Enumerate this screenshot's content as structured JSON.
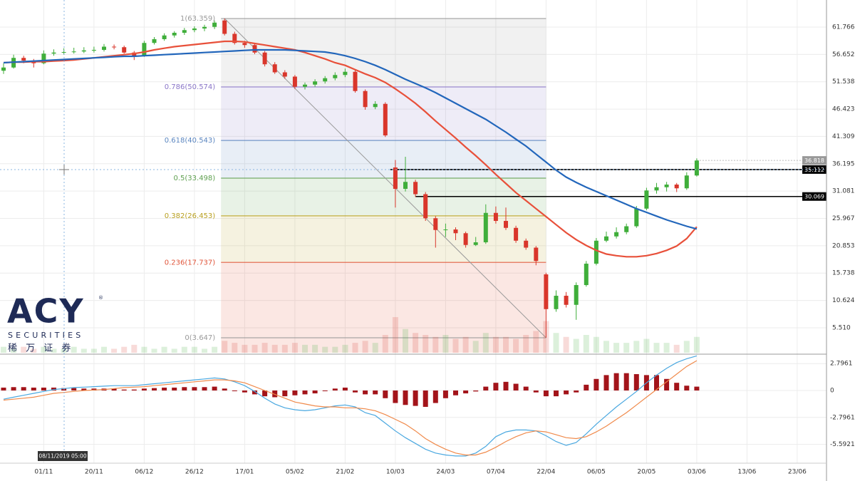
{
  "chart_data": {
    "type": "candlestick",
    "categories": [
      null,
      null,
      null,
      null,
      "01/11",
      null,
      null,
      null,
      null,
      "20/11",
      null,
      null,
      null,
      null,
      "06/12",
      null,
      null,
      null,
      null,
      "26/12",
      null,
      null,
      null,
      null,
      "17/01",
      null,
      null,
      null,
      null,
      "05/02",
      null,
      null,
      null,
      null,
      "21/02",
      null,
      null,
      null,
      null,
      "10/03",
      null,
      null,
      null,
      null,
      "24/03",
      null,
      null,
      null,
      null,
      "07/04",
      null,
      null,
      null,
      null,
      "22/04",
      null,
      null,
      null,
      null,
      "06/05",
      null,
      null,
      null,
      null,
      "20/05",
      null,
      null,
      null,
      null,
      "03/06",
      null,
      null,
      null,
      null,
      "13/06",
      null,
      null,
      null,
      null,
      "23/06"
    ],
    "ohlc": [
      [
        53.6,
        55.0,
        53.0,
        54.2
      ],
      [
        54.2,
        56.6,
        54.0,
        56.0
      ],
      [
        56.0,
        56.4,
        55.0,
        55.5
      ],
      [
        55.5,
        55.8,
        54.2,
        55.0
      ],
      [
        55.0,
        57.4,
        54.8,
        56.8
      ],
      [
        56.8,
        57.6,
        56.4,
        57.0
      ],
      [
        57.0,
        57.8,
        56.6,
        57.1
      ],
      [
        57.1,
        57.9,
        56.8,
        57.2
      ],
      [
        57.2,
        58.0,
        56.9,
        57.4
      ],
      [
        57.4,
        58.1,
        57.0,
        57.5
      ],
      [
        57.5,
        58.6,
        57.2,
        58.1
      ],
      [
        58.1,
        58.5,
        57.6,
        58.0
      ],
      [
        58.0,
        58.3,
        56.8,
        57.0
      ],
      [
        57.0,
        57.3,
        55.6,
        56.4
      ],
      [
        56.4,
        59.2,
        56.2,
        58.8
      ],
      [
        58.8,
        59.9,
        58.5,
        59.5
      ],
      [
        59.5,
        60.6,
        59.2,
        60.2
      ],
      [
        60.2,
        61.0,
        59.8,
        60.7
      ],
      [
        60.7,
        61.6,
        60.3,
        61.2
      ],
      [
        61.2,
        61.9,
        60.8,
        61.5
      ],
      [
        61.5,
        62.2,
        61.0,
        61.8
      ],
      [
        61.8,
        63.0,
        61.4,
        62.6
      ],
      [
        63.0,
        63.36,
        60.2,
        60.5
      ],
      [
        60.5,
        60.9,
        58.5,
        58.8
      ],
      [
        58.8,
        59.2,
        57.9,
        58.4
      ],
      [
        58.4,
        58.7,
        56.7,
        57.0
      ],
      [
        57.0,
        57.3,
        54.4,
        54.8
      ],
      [
        54.8,
        55.2,
        53.0,
        53.3
      ],
      [
        53.3,
        53.7,
        52.1,
        52.5
      ],
      [
        52.5,
        52.8,
        50.2,
        50.6
      ],
      [
        50.6,
        51.4,
        50.1,
        51.0
      ],
      [
        51.0,
        52.0,
        50.6,
        51.6
      ],
      [
        51.6,
        52.6,
        51.2,
        52.2
      ],
      [
        52.2,
        53.3,
        51.8,
        52.8
      ],
      [
        52.8,
        54.0,
        52.4,
        53.4
      ],
      [
        53.4,
        53.7,
        49.5,
        49.8
      ],
      [
        49.8,
        50.1,
        46.3,
        46.8
      ],
      [
        46.8,
        47.9,
        46.4,
        47.4
      ],
      [
        47.4,
        47.7,
        41.2,
        41.5
      ],
      [
        35.5,
        36.9,
        28.0,
        31.5
      ],
      [
        31.5,
        37.5,
        31.0,
        32.8
      ],
      [
        32.8,
        33.2,
        30.0,
        30.5
      ],
      [
        30.5,
        30.9,
        25.5,
        26.0
      ],
      [
        26.0,
        26.4,
        20.5,
        23.8
      ],
      [
        23.8,
        25.0,
        22.5,
        23.9
      ],
      [
        23.9,
        24.3,
        21.9,
        23.2
      ],
      [
        23.2,
        23.5,
        20.5,
        21.0
      ],
      [
        21.0,
        22.5,
        20.8,
        21.5
      ],
      [
        21.5,
        28.6,
        21.2,
        27.0
      ],
      [
        27.0,
        28.2,
        25.0,
        25.5
      ],
      [
        25.5,
        28.0,
        23.8,
        24.2
      ],
      [
        24.2,
        24.6,
        21.4,
        21.8
      ],
      [
        21.8,
        22.2,
        20.1,
        20.5
      ],
      [
        20.5,
        20.8,
        17.2,
        18.0
      ],
      [
        15.5,
        15.8,
        3.647,
        9.0
      ],
      [
        9.0,
        12.5,
        8.5,
        11.5
      ],
      [
        11.5,
        12.2,
        9.3,
        9.8
      ],
      [
        9.8,
        14.0,
        7.0,
        13.5
      ],
      [
        13.5,
        18.0,
        13.2,
        17.5
      ],
      [
        17.5,
        22.3,
        17.2,
        21.8
      ],
      [
        21.8,
        23.5,
        21.5,
        22.6
      ],
      [
        22.6,
        24.3,
        22.2,
        23.4
      ],
      [
        23.4,
        25.0,
        23.0,
        24.5
      ],
      [
        24.5,
        28.3,
        24.2,
        27.8
      ],
      [
        27.8,
        31.7,
        27.5,
        31.2
      ],
      [
        31.2,
        32.6,
        30.6,
        31.8
      ],
      [
        31.8,
        32.8,
        31.0,
        32.3
      ],
      [
        32.3,
        32.6,
        30.9,
        31.6
      ],
      [
        31.6,
        34.6,
        31.3,
        34.0
      ],
      [
        34.0,
        37.2,
        33.8,
        36.8
      ],
      null,
      null,
      null,
      null,
      null,
      null,
      null,
      null,
      null,
      null
    ],
    "up_color": "#3fae3a",
    "down_color": "#d9362b",
    "ylim": [
      0.84,
      66.83
    ],
    "yticks": [
      61.766,
      56.652,
      51.538,
      46.423,
      41.309,
      36.195,
      31.081,
      25.967,
      20.853,
      15.738,
      10.624,
      {
        "value": 5.51,
        "label": "5.510"
      }
    ],
    "grid": true,
    "moving_averages": [
      {
        "color": "#e8503a",
        "values": [
          55.1,
          55.2,
          55.2,
          55.3,
          55.3,
          55.4,
          55.5,
          55.6,
          55.8,
          56.0,
          56.2,
          56.4,
          56.6,
          56.8,
          57.1,
          57.5,
          57.8,
          58.1,
          58.3,
          58.5,
          58.7,
          58.9,
          59.1,
          59.1,
          59.0,
          58.7,
          58.4,
          58.1,
          57.8,
          57.5,
          57.0,
          56.4,
          55.8,
          55.1,
          54.6,
          53.8,
          53.0,
          52.3,
          51.4,
          50.2,
          48.9,
          47.5,
          45.9,
          44.2,
          42.6,
          41.0,
          39.3,
          37.7,
          36.0,
          34.2,
          32.5,
          30.8,
          29.3,
          27.8,
          26.3,
          24.8,
          23.3,
          22.0,
          20.9,
          20.0,
          19.3,
          19.0,
          18.8,
          18.8,
          19.0,
          19.4,
          20.0,
          20.8,
          22.2,
          24.4,
          null,
          null,
          null,
          null,
          null,
          null,
          null,
          null,
          null,
          null
        ]
      },
      {
        "color": "#2266bb",
        "values": [
          55.1,
          55.2,
          55.3,
          55.4,
          55.5,
          55.6,
          55.7,
          55.8,
          55.9,
          56.0,
          56.1,
          56.2,
          56.3,
          56.3,
          56.4,
          56.5,
          56.6,
          56.7,
          56.8,
          56.9,
          57.0,
          57.1,
          57.2,
          57.3,
          57.4,
          57.5,
          57.5,
          57.5,
          57.5,
          57.4,
          57.3,
          57.2,
          57.1,
          56.8,
          56.4,
          55.9,
          55.3,
          54.6,
          53.8,
          52.9,
          52.0,
          51.2,
          50.4,
          49.5,
          48.5,
          47.5,
          46.5,
          45.5,
          44.5,
          43.3,
          42.1,
          40.8,
          39.5,
          38.0,
          36.5,
          35.0,
          33.7,
          32.7,
          31.8,
          31.0,
          30.2,
          29.4,
          28.6,
          27.8,
          27.1,
          26.4,
          25.7,
          25.1,
          24.5,
          24.0,
          null,
          null,
          null,
          null,
          null,
          null,
          null,
          null,
          null,
          null
        ]
      }
    ],
    "volume": [
      3,
      2,
      3,
      2,
      3,
      2,
      2,
      3,
      2,
      2,
      3,
      2,
      3,
      4,
      3,
      2,
      3,
      2,
      3,
      3,
      2,
      3,
      6,
      5,
      4,
      4,
      5,
      4,
      4,
      5,
      4,
      4,
      3,
      3,
      4,
      5,
      6,
      5,
      9,
      18,
      12,
      10,
      9,
      8,
      9,
      7,
      8,
      6,
      10,
      8,
      8,
      7,
      9,
      11,
      16,
      10,
      8,
      7,
      9,
      8,
      6,
      5,
      5,
      6,
      7,
      5,
      5,
      4,
      6,
      8,
      null,
      null,
      null,
      null,
      null,
      null,
      null,
      null,
      null,
      null
    ],
    "fibonacci": [
      {
        "value": 63.359,
        "label": "1(63.359)",
        "color": "#9a9a9a"
      },
      {
        "value": 50.574,
        "label": "0.786(50.574)",
        "color": "#8a76c8"
      },
      {
        "value": 40.543,
        "label": "0.618(40.543)",
        "color": "#5b86c0"
      },
      {
        "value": 33.498,
        "label": "0.5(33.498)",
        "color": "#5fa050"
      },
      {
        "value": 26.453,
        "label": "0.382(26.453)",
        "color": "#b9a020"
      },
      {
        "value": 17.737,
        "label": "0.236(17.737)",
        "color": "#e0553a"
      },
      {
        "value": 3.647,
        "label": "0(3.647)",
        "color": "#9a9a9a"
      }
    ],
    "levels": [
      35.112,
      30.069
    ],
    "last_price": 36.818,
    "macd": {
      "ylim": [
        -7.55,
        3.7
      ],
      "yticks": [
        2.7961,
        0,
        -2.7961,
        -5.59219
      ],
      "histogram_color": "#a3141a",
      "histogram": [
        0.3,
        0.35,
        0.35,
        0.3,
        0.3,
        0.3,
        0.25,
        0.25,
        0.2,
        0.2,
        0.2,
        0.2,
        0.1,
        0.1,
        0.2,
        0.25,
        0.3,
        0.3,
        0.35,
        0.35,
        0.35,
        0.4,
        0.2,
        0.0,
        -0.2,
        -0.4,
        -0.6,
        -0.7,
        -0.6,
        -0.5,
        -0.4,
        -0.3,
        0.0,
        0.2,
        0.3,
        -0.2,
        -0.4,
        -0.4,
        -0.8,
        -1.3,
        -1.5,
        -1.6,
        -1.7,
        -1.3,
        -0.8,
        -0.5,
        -0.3,
        -0.1,
        0.4,
        0.8,
        0.9,
        0.7,
        0.4,
        -0.2,
        -0.6,
        -0.6,
        -0.4,
        -0.2,
        0.6,
        1.2,
        1.6,
        1.8,
        1.8,
        1.7,
        1.6,
        1.6,
        1.2,
        0.8,
        0.5,
        0.4,
        null,
        null,
        null,
        null,
        null,
        null,
        null,
        null,
        null,
        null
      ],
      "macd_color": "#4aa8e0",
      "macd": [
        -0.9,
        -0.7,
        -0.5,
        -0.3,
        -0.1,
        0.1,
        0.2,
        0.3,
        0.35,
        0.4,
        0.45,
        0.5,
        0.5,
        0.5,
        0.6,
        0.7,
        0.8,
        0.9,
        1.0,
        1.1,
        1.2,
        1.3,
        1.2,
        0.9,
        0.5,
        -0.1,
        -0.8,
        -1.4,
        -1.8,
        -2.0,
        -2.1,
        -2.0,
        -1.8,
        -1.6,
        -1.5,
        -1.7,
        -2.3,
        -2.6,
        -3.4,
        -4.2,
        -4.9,
        -5.5,
        -6.1,
        -6.5,
        -6.7,
        -6.8,
        -6.8,
        -6.5,
        -5.8,
        -4.8,
        -4.3,
        -4.1,
        -4.1,
        -4.2,
        -4.7,
        -5.3,
        -5.7,
        -5.4,
        -4.5,
        -3.5,
        -2.6,
        -1.7,
        -0.9,
        -0.1,
        0.8,
        1.6,
        2.3,
        2.9,
        3.3,
        3.6,
        null,
        null,
        null,
        null,
        null,
        null,
        null,
        null,
        null,
        null
      ],
      "signal_color": "#f08a4b",
      "signal": [
        -1.0,
        -0.9,
        -0.8,
        -0.7,
        -0.5,
        -0.3,
        -0.2,
        -0.1,
        0.0,
        0.05,
        0.1,
        0.2,
        0.3,
        0.35,
        0.4,
        0.5,
        0.6,
        0.7,
        0.8,
        0.9,
        1.0,
        1.1,
        1.1,
        1.0,
        0.8,
        0.4,
        0.0,
        -0.4,
        -0.8,
        -1.2,
        -1.4,
        -1.6,
        -1.7,
        -1.7,
        -1.8,
        -1.8,
        -1.9,
        -2.1,
        -2.5,
        -3.0,
        -3.5,
        -4.2,
        -5.0,
        -5.6,
        -6.1,
        -6.5,
        -6.7,
        -6.7,
        -6.4,
        -5.9,
        -5.3,
        -4.8,
        -4.4,
        -4.2,
        -4.3,
        -4.6,
        -4.9,
        -5.0,
        -4.8,
        -4.3,
        -3.7,
        -3.0,
        -2.3,
        -1.5,
        -0.7,
        0.1,
        0.9,
        1.7,
        2.5,
        3.1,
        null,
        null,
        null,
        null,
        null,
        null,
        null,
        null,
        null,
        null
      ]
    },
    "crosshair_label": "08/11/2019 05:00",
    "logo": {
      "name": "ACY",
      "mark": "®",
      "tagline": "SECURITIES",
      "chinese": "稀 万 证 券"
    }
  }
}
